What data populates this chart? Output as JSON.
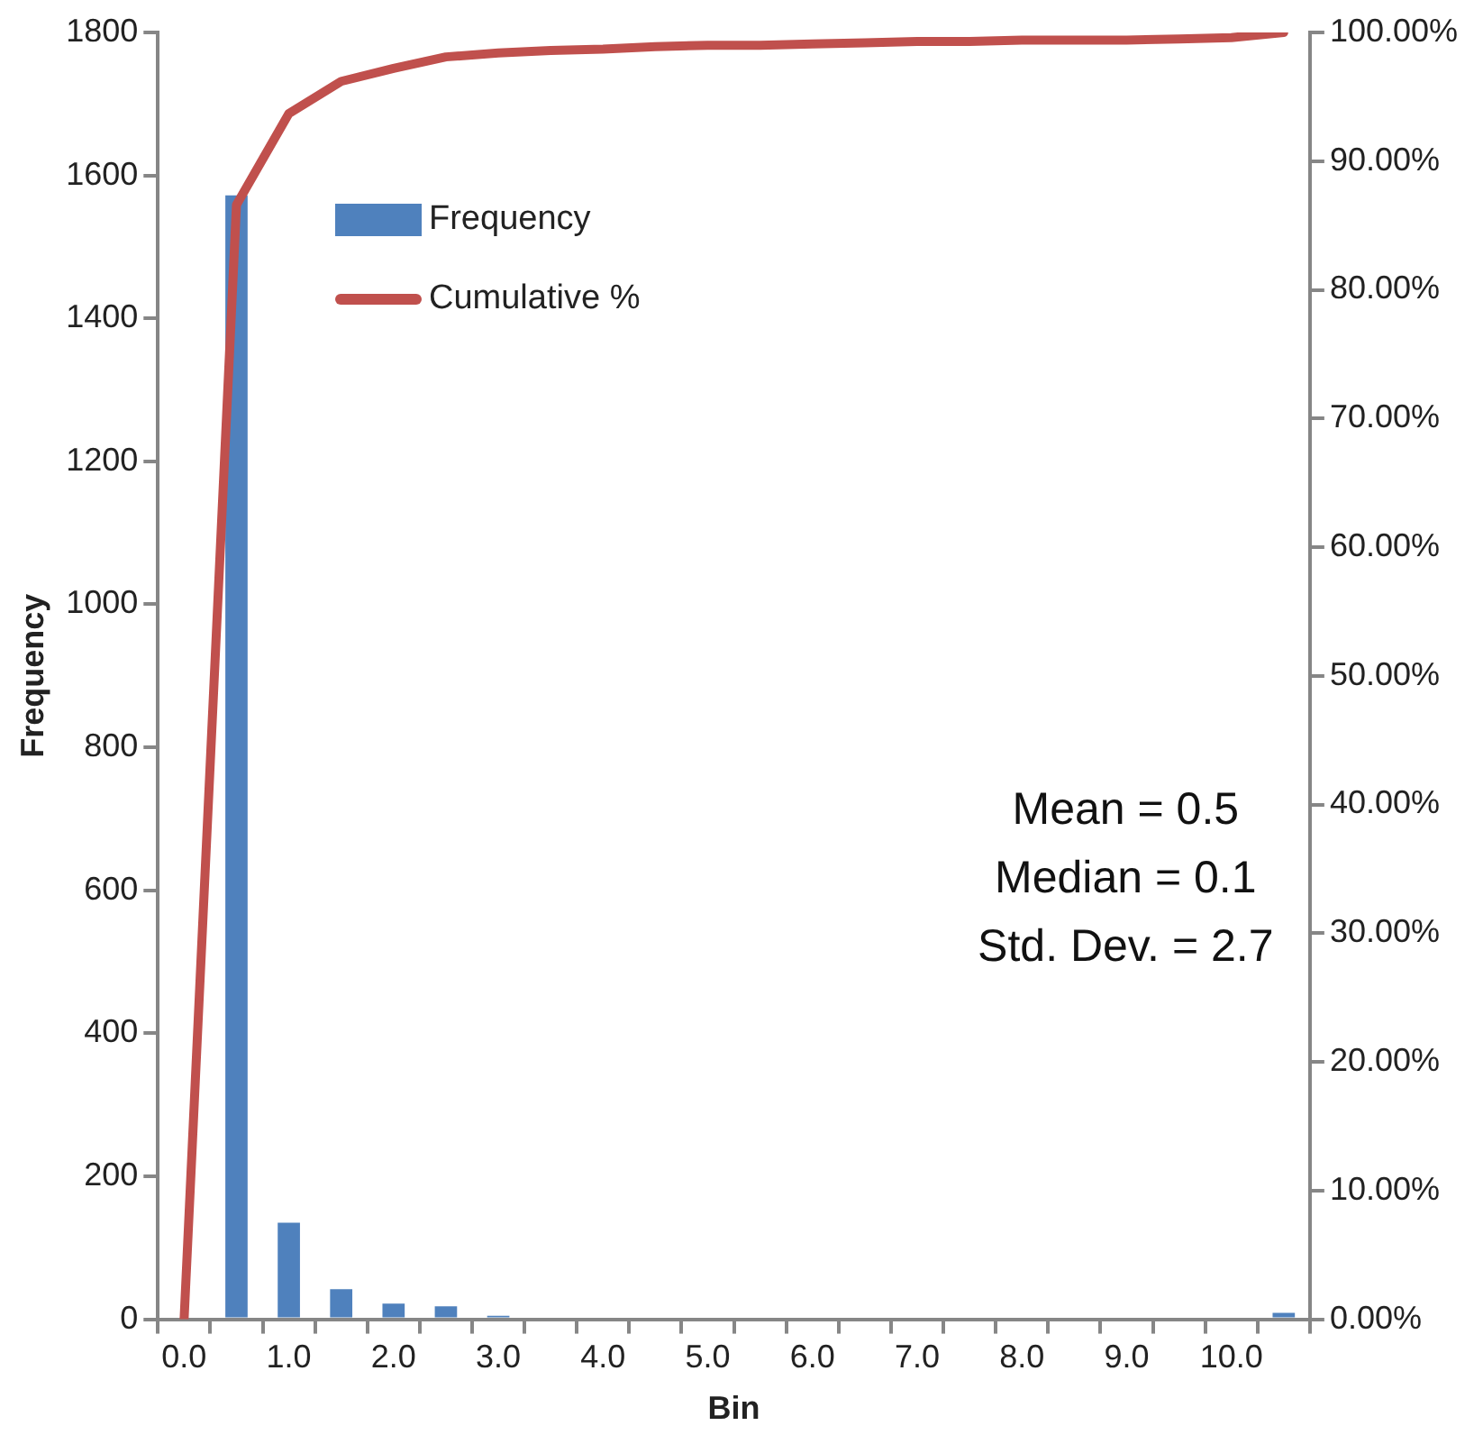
{
  "chart_data": {
    "type": "bar",
    "xlabel": "Bin",
    "ylabel": "Frequency",
    "categories": [
      "0.0",
      null,
      "1.0",
      null,
      "2.0",
      null,
      "3.0",
      null,
      "4.0",
      null,
      "5.0",
      null,
      "6.0",
      null,
      "7.0",
      null,
      "8.0",
      null,
      "9.0",
      null,
      "10.0",
      null
    ],
    "series": [
      {
        "name": "Frequency",
        "color": "#4f81bd",
        "values": [
          0,
          1572,
          135,
          42,
          22,
          18,
          5,
          0,
          0,
          0,
          0,
          0,
          0,
          0,
          0,
          0,
          0,
          0,
          0,
          0,
          0,
          9
        ]
      },
      {
        "name": "Cumulative %",
        "type": "line",
        "axis": "y2",
        "color": "#c0504d",
        "values": [
          0,
          86.6,
          93.7,
          96.2,
          97.2,
          98.1,
          98.4,
          98.6,
          98.7,
          98.9,
          99.0,
          99.0,
          99.1,
          99.2,
          99.3,
          99.3,
          99.4,
          99.4,
          99.4,
          99.5,
          99.6,
          100
        ]
      }
    ],
    "ylim": [
      0,
      1800
    ],
    "yticks": [
      0,
      200,
      400,
      600,
      800,
      1000,
      1200,
      1400,
      1600,
      1800
    ],
    "y2lim": [
      0,
      100
    ],
    "y2ticks": [
      {
        "value": 0,
        "label": "0.00%"
      },
      {
        "value": 10,
        "label": "10.00%"
      },
      {
        "value": 20,
        "label": "20.00%"
      },
      {
        "value": 30,
        "label": "30.00%"
      },
      {
        "value": 40,
        "label": "40.00%"
      },
      {
        "value": 50,
        "label": "50.00%"
      },
      {
        "value": 60,
        "label": "60.00%"
      },
      {
        "value": 70,
        "label": "70.00%"
      },
      {
        "value": 80,
        "label": "80.00%"
      },
      {
        "value": 90,
        "label": "90.00%"
      },
      {
        "value": 100,
        "label": "100.00%"
      }
    ],
    "annotations": [
      "Mean = 0.5",
      "Median = 0.1",
      "Std. Dev. = 2.7"
    ],
    "legend": "top left",
    "grid": false,
    "marker": "none",
    "line_style": "solid"
  }
}
